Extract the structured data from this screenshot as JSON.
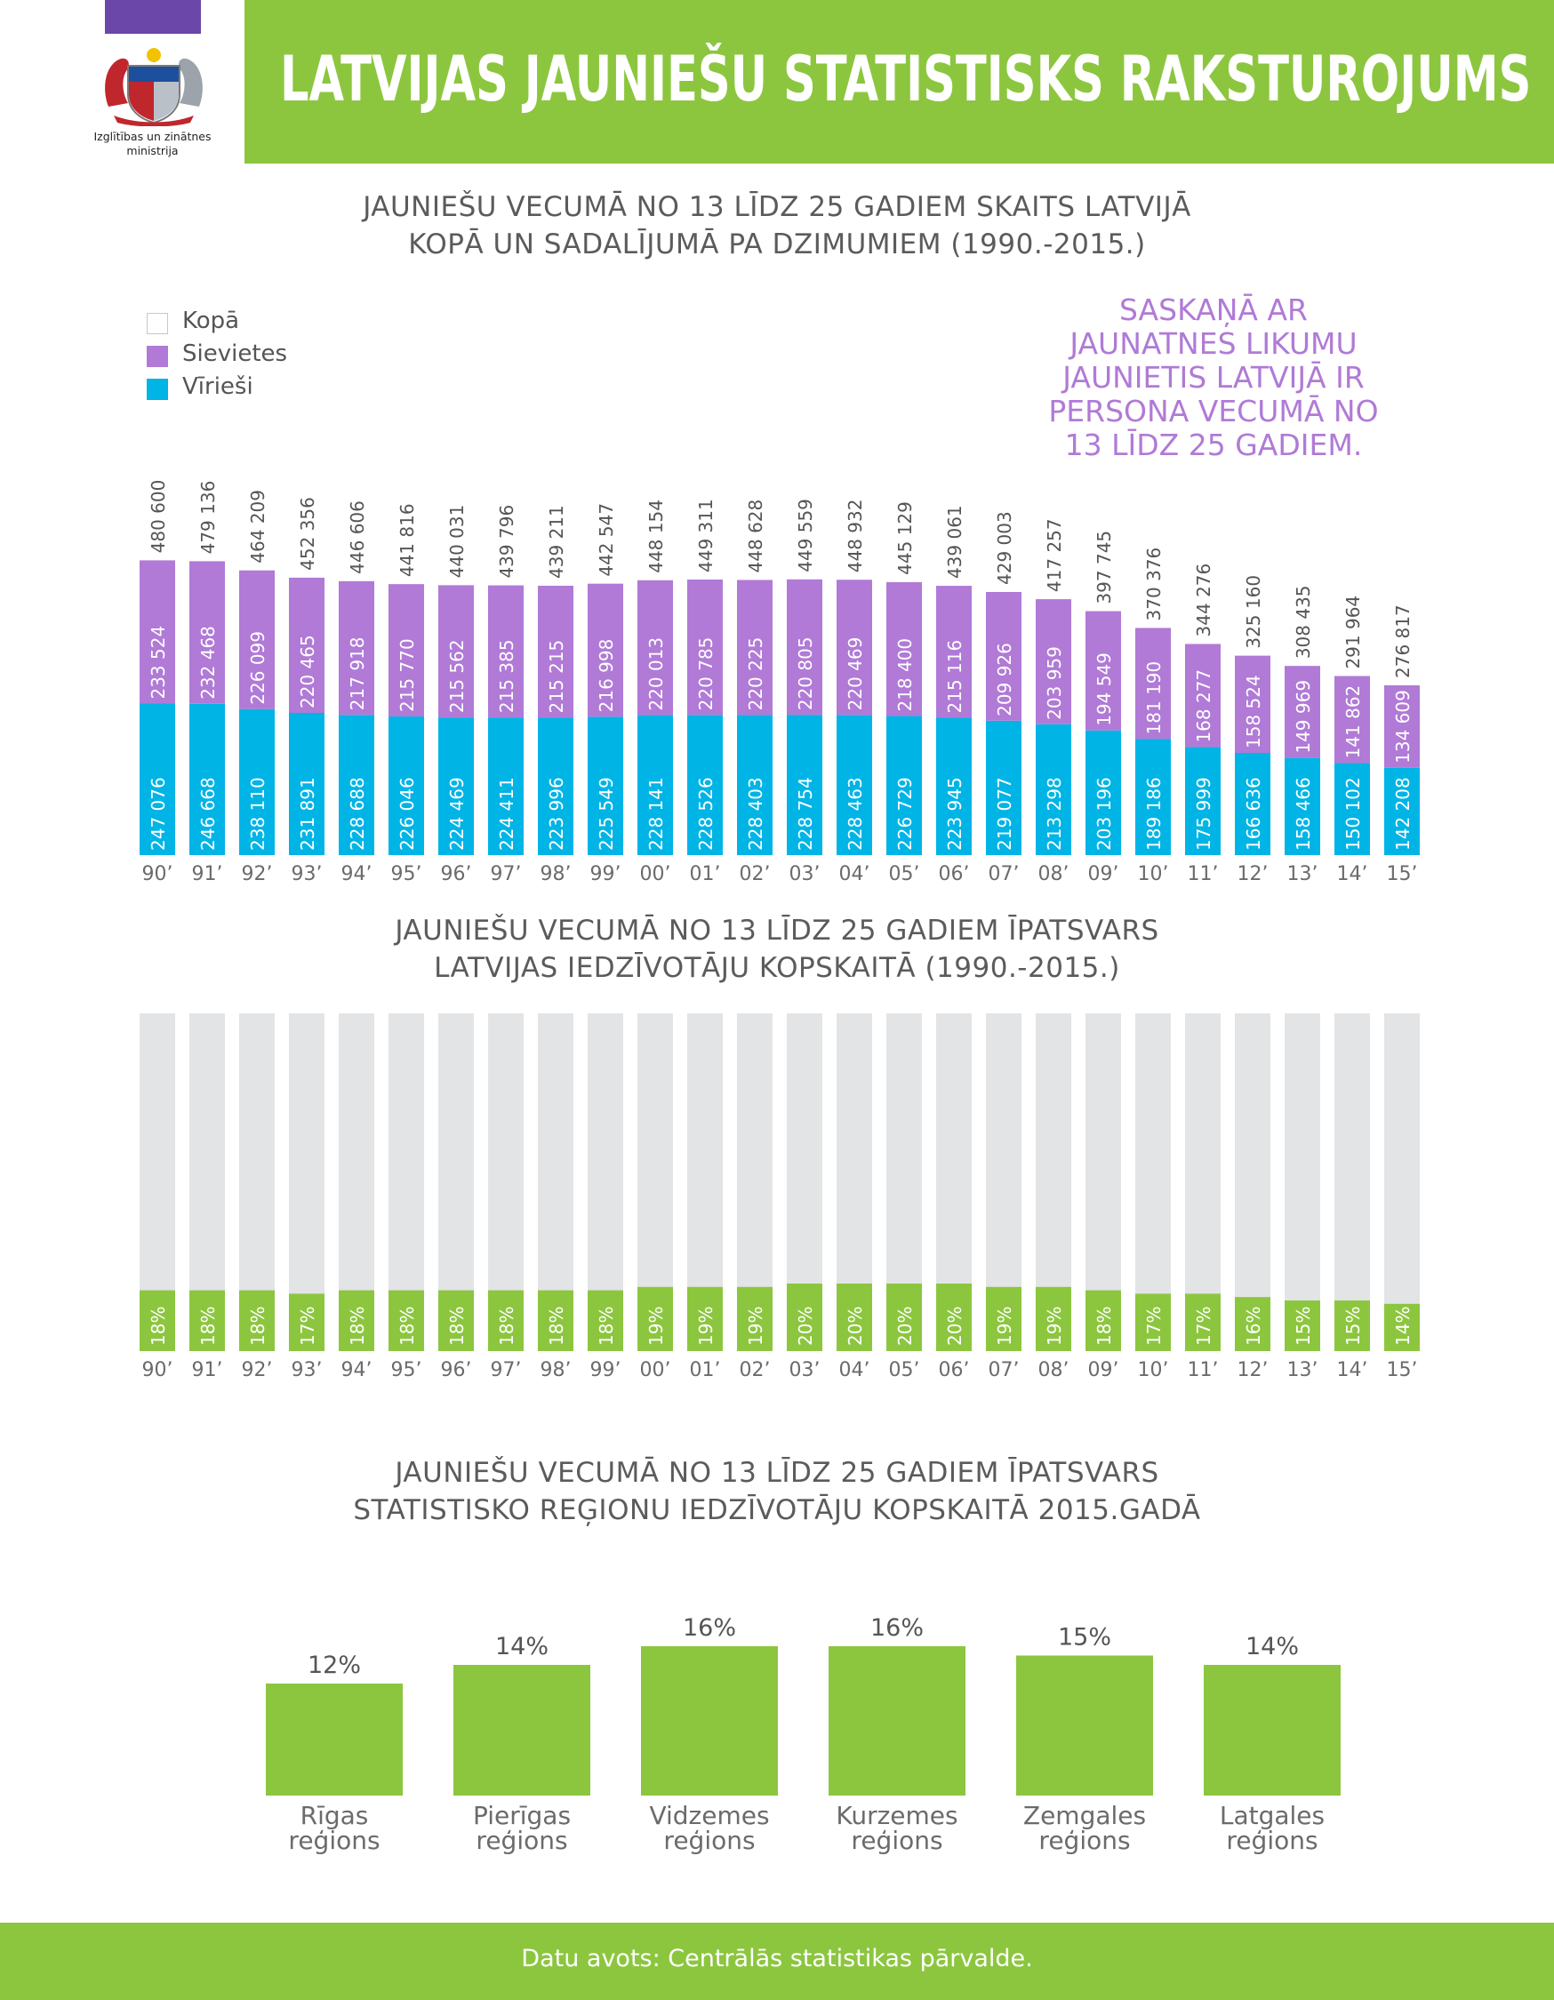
{
  "header": {
    "title": "LATVIJAS JAUNIEŠU STATISTISKS RAKSTUROJUMS",
    "logo_text_line1": "Izglītības un zinātnes",
    "logo_text_line2": "ministrija",
    "logo_icon": "coat-of-arms-icon"
  },
  "colors": {
    "green": "#8cc63f",
    "purple": "#b07ad6",
    "cyan": "#00b4e6",
    "grey_bar": "#e3e4e6",
    "logo_strip": "#6a47a8"
  },
  "callout": {
    "line1": "SASKAŅĀ AR",
    "line2": "JAUNATNES LIKUMU",
    "line3": "JAUNIETIS LATVIJĀ IR",
    "line4": "PERSONA VECUMĀ NO",
    "line5": "13 LĪDZ 25 GADIEM."
  },
  "chart_data": [
    {
      "type": "bar",
      "stacked": true,
      "title_line1": "JAUNIEŠU VECUMĀ NO 13 LĪDZ 25 GADIEM SKAITS LATVIJĀ",
      "title_line2": "KOPĀ UN SADALĪJUMĀ PA DZIMUMIEM (1990.-2015.)",
      "legend_placement": "top-left",
      "legend": [
        "Kopā",
        "Sievietes",
        "Vīrieši"
      ],
      "categories": [
        "90’",
        "91’",
        "92’",
        "93’",
        "94’",
        "95’",
        "96’",
        "97’",
        "98’",
        "99’",
        "00’",
        "01’",
        "02’",
        "03’",
        "04’",
        "05’",
        "06’",
        "07’",
        "08’",
        "09’",
        "10’",
        "11’",
        "12’",
        "13’",
        "14’",
        "15’"
      ],
      "series": [
        {
          "name": "Vīrieši",
          "values": [
            "247 076",
            "246 668",
            "238 110",
            "231 891",
            "228 688",
            "226 046",
            "224 469",
            "224 411",
            "223 996",
            "225 549",
            "228 141",
            "228 526",
            "228 403",
            "228 754",
            "228 463",
            "226 729",
            "223 945",
            "219 077",
            "213 298",
            "203 196",
            "189 186",
            "175 999",
            "166 636",
            "158 466",
            "150 102",
            "142 208"
          ]
        },
        {
          "name": "Sievietes",
          "values": [
            "233 524",
            "232 468",
            "226 099",
            "220 465",
            "217 918",
            "215 770",
            "215 562",
            "215 385",
            "215 215",
            "216 998",
            "220 013",
            "220 785",
            "220 225",
            "220 805",
            "220 469",
            "218 400",
            "215 116",
            "209 926",
            "203 959",
            "194 549",
            "181 190",
            "168 277",
            "158 524",
            "149 969",
            "141 862",
            "134 609"
          ]
        },
        {
          "name": "Kopā",
          "values": [
            "480 600",
            "479 136",
            "464 209",
            "452 356",
            "446 606",
            "441 816",
            "440 031",
            "439 796",
            "439 211",
            "442 547",
            "448 154",
            "449 311",
            "448 628",
            "449 559",
            "448 932",
            "445 129",
            "439 061",
            "429 003",
            "417 257",
            "397 745",
            "370 376",
            "344 276",
            "325 160",
            "308 435",
            "291 964",
            "276 817"
          ]
        }
      ],
      "grid": false
    },
    {
      "type": "bar",
      "title_line1": "JAUNIEŠU VECUMĀ NO 13 LĪDZ 25 GADIEM ĪPATSVARS",
      "title_line2": "LATVIJAS IEDZĪVOTĀJU KOPSKAITĀ (1990.-2015.)",
      "categories": [
        "90’",
        "91’",
        "92’",
        "93’",
        "94’",
        "95’",
        "96’",
        "97’",
        "98’",
        "99’",
        "00’",
        "01’",
        "02’",
        "03’",
        "04’",
        "05’",
        "06’",
        "07’",
        "08’",
        "09’",
        "10’",
        "11’",
        "12’",
        "13’",
        "14’",
        "15’"
      ],
      "values": [
        18,
        18,
        18,
        17,
        18,
        18,
        18,
        18,
        18,
        18,
        19,
        19,
        19,
        20,
        20,
        20,
        20,
        19,
        19,
        18,
        17,
        17,
        16,
        15,
        15,
        14
      ],
      "value_labels": [
        "18%",
        "18%",
        "18%",
        "17%",
        "18%",
        "18%",
        "18%",
        "18%",
        "18%",
        "18%",
        "19%",
        "19%",
        "19%",
        "20%",
        "20%",
        "20%",
        "20%",
        "19%",
        "19%",
        "18%",
        "17%",
        "17%",
        "16%",
        "15%",
        "15%",
        "14%"
      ],
      "ylim": [
        0,
        100
      ],
      "grid": false
    },
    {
      "type": "bar",
      "title_line1": "JAUNIEŠU VECUMĀ NO 13 LĪDZ 25 GADIEM ĪPATSVARS",
      "title_line2": "STATISTISKO REĢIONU IEDZĪVOTĀJU KOPSKAITĀ 2015.GADĀ",
      "categories": [
        {
          "line1": "Rīgas",
          "line2": "reģions"
        },
        {
          "line1": "Pierīgas",
          "line2": "reģions"
        },
        {
          "line1": "Vidzemes",
          "line2": "reģions"
        },
        {
          "line1": "Kurzemes",
          "line2": "reģions"
        },
        {
          "line1": "Zemgales",
          "line2": "reģions"
        },
        {
          "line1": "Latgales",
          "line2": "reģions"
        }
      ],
      "values": [
        12,
        14,
        16,
        16,
        15,
        14
      ],
      "value_labels": [
        "12%",
        "14%",
        "16%",
        "16%",
        "15%",
        "14%"
      ],
      "grid": false
    }
  ],
  "footer": {
    "source": "Datu avots: Centrālās statistikas pārvalde."
  }
}
